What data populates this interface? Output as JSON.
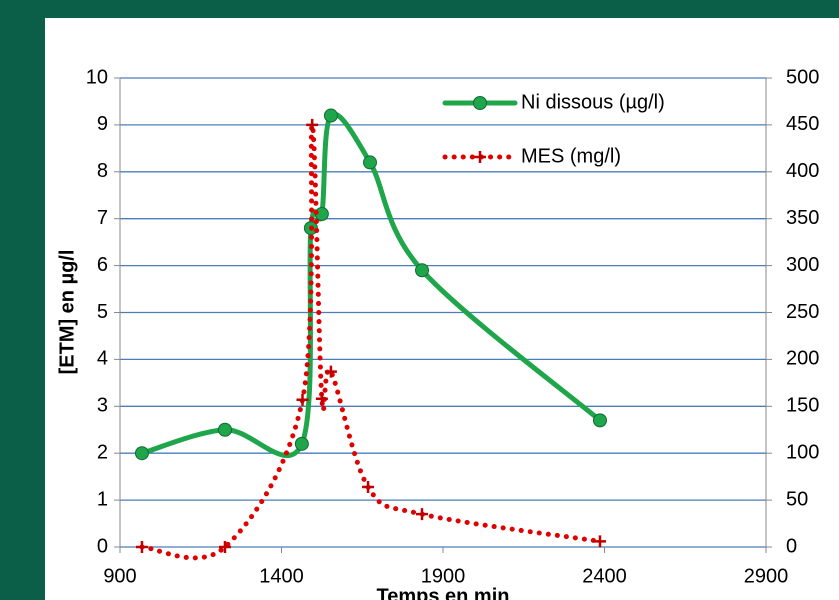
{
  "chart_data": {
    "type": "line",
    "xlabel": "Temps en min",
    "ylabel": "[ETM] en µg/l",
    "xlim": [
      900,
      2900
    ],
    "xticks": [
      900,
      1400,
      1900,
      2400,
      2900
    ],
    "ylim": [
      0,
      10
    ],
    "yticks": [
      0,
      1,
      2,
      3,
      4,
      5,
      6,
      7,
      8,
      9,
      10
    ],
    "y2lim": [
      0,
      500
    ],
    "y2ticks": [
      0,
      50,
      100,
      150,
      200,
      250,
      300,
      350,
      400,
      450,
      500
    ],
    "grid": true,
    "legend": "upper right",
    "series": [
      {
        "name": "Ni dissous (µg/l)",
        "color": "#1fa54a",
        "marker": "circle",
        "x": [
          968,
          1225,
          1463,
          1491,
          1525,
          1553,
          1674,
          1835,
          2386
        ],
        "values": [
          2.0,
          2.5,
          2.2,
          6.8,
          7.1,
          9.2,
          8.2,
          5.9,
          2.7
        ]
      },
      {
        "name": "MES (mg/l)",
        "color": "#e00000",
        "marker": "plus",
        "axis": "y2",
        "dotted": true,
        "x": [
          968,
          1225,
          1465,
          1495,
          1525,
          1553,
          1668,
          1835,
          2386
        ],
        "values": [
          0,
          0,
          157,
          450,
          158,
          187,
          64,
          35,
          6
        ]
      }
    ]
  }
}
